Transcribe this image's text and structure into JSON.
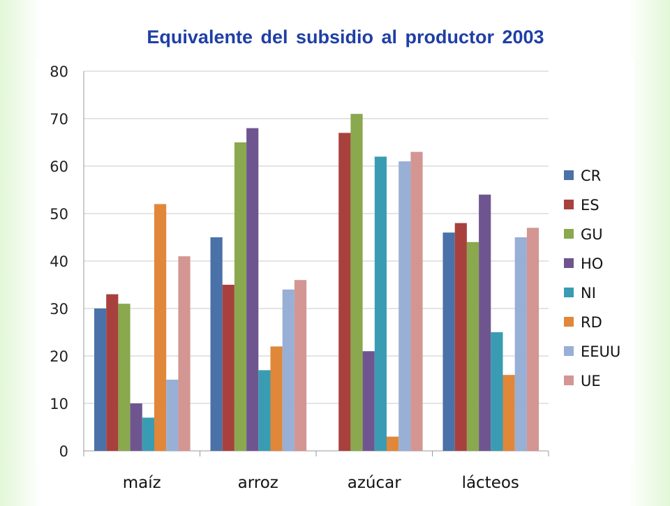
{
  "chart_data": {
    "type": "bar",
    "title": "Equivalente del subsidio al productor 2003",
    "xlabel": "",
    "ylabel": "",
    "categories": [
      "maíz",
      "arroz",
      "azúcar",
      "lácteos"
    ],
    "ylim": [
      0,
      80
    ],
    "yticks": [
      0,
      10,
      20,
      30,
      40,
      50,
      60,
      70,
      80
    ],
    "grid": true,
    "legend_position": "right",
    "series": [
      {
        "name": "CR",
        "color": "#4a72a8",
        "values": [
          30,
          45,
          null,
          46
        ]
      },
      {
        "name": "ES",
        "color": "#a8413e",
        "values": [
          33,
          35,
          67,
          48
        ]
      },
      {
        "name": "GU",
        "color": "#8aa84e",
        "values": [
          31,
          65,
          71,
          44
        ]
      },
      {
        "name": "HO",
        "color": "#6f5590",
        "values": [
          10,
          68,
          21,
          54
        ]
      },
      {
        "name": "NI",
        "color": "#3a9cb3",
        "values": [
          7,
          17,
          62,
          25
        ]
      },
      {
        "name": "RD",
        "color": "#e0873a",
        "values": [
          52,
          22,
          3,
          16
        ]
      },
      {
        "name": "EEUU",
        "color": "#98afd6",
        "values": [
          15,
          34,
          61,
          45
        ]
      },
      {
        "name": "UE",
        "color": "#d39693",
        "values": [
          41,
          36,
          63,
          47
        ]
      }
    ]
  }
}
